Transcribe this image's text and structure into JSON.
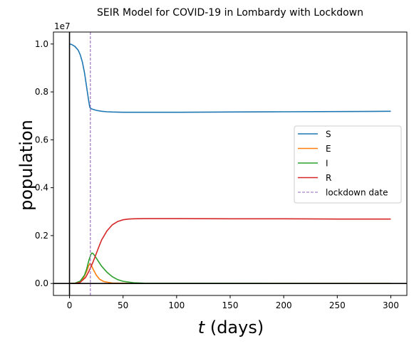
{
  "chart_data": {
    "type": "line",
    "title": "SEIR Model for COVID-19 in Lombardy with Lockdown",
    "xlabel_var": "t",
    "xlabel_unit": " (days)",
    "ylabel": "population",
    "offset_text": "1e7",
    "xlim": [
      -15,
      315
    ],
    "ylim": [
      -0.05,
      1.05
    ],
    "y_scale_multiplier": 10000000,
    "x_ticks": [
      0,
      50,
      100,
      150,
      200,
      250,
      300
    ],
    "x_tick_labels": [
      "0",
      "50",
      "100",
      "150",
      "200",
      "250",
      "300"
    ],
    "y_ticks": [
      0.0,
      0.2,
      0.4,
      0.6,
      0.8,
      1.0
    ],
    "y_tick_labels": [
      "0.0",
      "0.2",
      "0.4",
      "0.6",
      "0.8",
      "1.0"
    ],
    "reference_lines": {
      "x": 0,
      "y": 0
    },
    "lockdown_day": 19.5,
    "legend_placement": "center-right",
    "series": [
      {
        "name": "S",
        "color": "#1f77b4",
        "x": [
          0,
          2,
          5,
          8,
          10,
          12,
          14,
          16,
          18,
          19,
          19.5,
          20,
          22,
          25,
          30,
          35,
          40,
          50,
          60,
          80,
          100,
          150,
          200,
          250,
          300
        ],
        "y": [
          1.0,
          0.998,
          0.99,
          0.975,
          0.955,
          0.925,
          0.88,
          0.82,
          0.76,
          0.735,
          0.733,
          0.73,
          0.727,
          0.723,
          0.719,
          0.717,
          0.716,
          0.715,
          0.715,
          0.715,
          0.715,
          0.716,
          0.717,
          0.718,
          0.719
        ]
      },
      {
        "name": "E",
        "color": "#ff7f0e",
        "x": [
          0,
          5,
          10,
          13,
          16,
          18,
          19,
          20,
          22,
          25,
          28,
          32,
          40,
          60,
          300
        ],
        "y": [
          0.0,
          0.001,
          0.008,
          0.022,
          0.05,
          0.075,
          0.083,
          0.08,
          0.06,
          0.035,
          0.018,
          0.008,
          0.002,
          0.0,
          0.0
        ]
      },
      {
        "name": "I",
        "color": "#2ca02c",
        "x": [
          0,
          5,
          10,
          14,
          16,
          18,
          20,
          21,
          22,
          24,
          27,
          30,
          35,
          40,
          45,
          50,
          60,
          70,
          300
        ],
        "y": [
          0.0,
          0.001,
          0.01,
          0.035,
          0.06,
          0.095,
          0.122,
          0.127,
          0.125,
          0.113,
          0.092,
          0.072,
          0.047,
          0.028,
          0.016,
          0.009,
          0.003,
          0.001,
          0.0
        ]
      },
      {
        "name": "R",
        "color": "#d62728",
        "x": [
          0,
          5,
          10,
          15,
          18,
          20,
          22,
          25,
          28,
          30,
          35,
          40,
          45,
          50,
          55,
          60,
          70,
          80,
          100,
          150,
          200,
          250,
          300
        ],
        "y": [
          0.0,
          0.0,
          0.005,
          0.025,
          0.05,
          0.07,
          0.09,
          0.125,
          0.16,
          0.182,
          0.22,
          0.245,
          0.259,
          0.266,
          0.269,
          0.27,
          0.271,
          0.271,
          0.271,
          0.27,
          0.27,
          0.269,
          0.269
        ]
      }
    ],
    "legend": [
      {
        "label": "S",
        "color": "#1f77b4",
        "style": "solid"
      },
      {
        "label": "E",
        "color": "#ff7f0e",
        "style": "solid"
      },
      {
        "label": "I",
        "color": "#2ca02c",
        "style": "solid"
      },
      {
        "label": "R",
        "color": "#d62728",
        "style": "solid"
      },
      {
        "label": "lockdown date",
        "color": "#9467bd",
        "style": "dashed"
      }
    ]
  }
}
